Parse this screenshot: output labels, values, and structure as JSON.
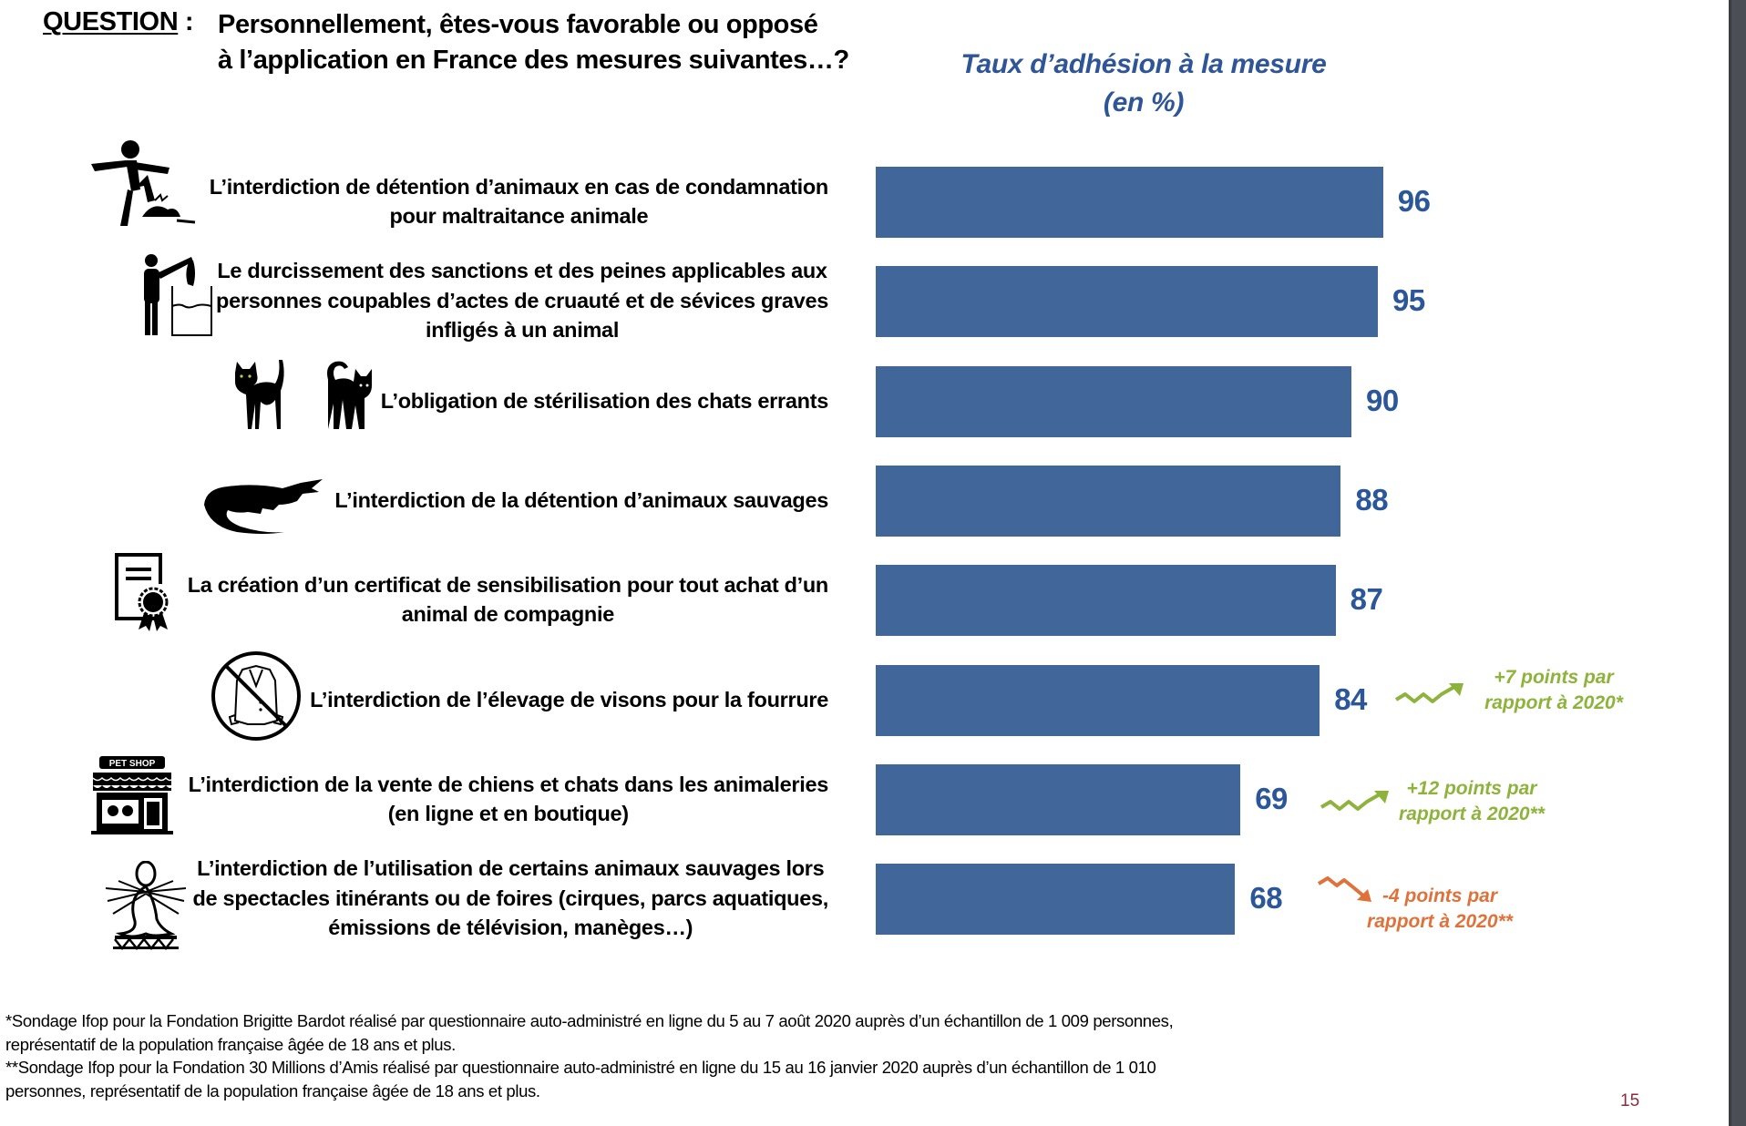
{
  "question": {
    "label": "QUESTION",
    "separator": " :",
    "text": "Personnellement, êtes-vous favorable ou opposé\nà l’application en France des mesures suivantes…?"
  },
  "colors": {
    "bar": "#41679a",
    "value_label": "#2b579a",
    "title": "#2e5597",
    "increase": "#8db33a",
    "decrease": "#e0713a",
    "page_number": "#8b2c3a"
  },
  "chart_data": {
    "type": "bar",
    "orientation": "horizontal",
    "title": "Taux d’adhésion à la mesure\n(en %)",
    "xlim": [
      0,
      100
    ],
    "grid": false,
    "categories": [
      "L’interdiction de détention d’animaux en cas de condamnation\npour maltraitance animale",
      "Le durcissement des sanctions et des peines applicables aux\npersonnes coupables d’actes de cruauté et de sévices graves\ninfligés à un animal",
      "L’obligation de stérilisation des chats errants",
      "L’interdiction de la détention d’animaux sauvages",
      "La création d’un certificat de sensibilisation pour tout achat d’un\nanimal de compagnie",
      "L’interdiction de l’élevage de visons pour la fourrure",
      "L’interdiction de la vente de chiens et chats dans les animaleries\n(en ligne et en boutique)",
      "L’interdiction de l’utilisation de certains animaux sauvages lors\nde spectacles itinérants ou de foires (cirques, parcs aquatiques,\némissions de télévision, manèges…)"
    ],
    "values": [
      96,
      95,
      90,
      88,
      87,
      84,
      69,
      68
    ],
    "value_labels": [
      "96",
      "95",
      "90",
      "88",
      "87",
      "84",
      "69",
      "68"
    ],
    "icons": [
      "person-kicking-animal-icon",
      "person-drowning-animal-icon",
      "cats-icon",
      "crocodile-icon",
      "certificate-icon",
      "no-fur-coat-icon",
      "pet-shop-icon",
      "circus-seal-icon"
    ],
    "annotations": [
      {
        "row": 5,
        "direction": "up",
        "change": 7,
        "text": "+7 points par\nrapport à 2020*"
      },
      {
        "row": 6,
        "direction": "up",
        "change": 12,
        "text": "+12 points par\nrapport à 2020**"
      },
      {
        "row": 7,
        "direction": "down",
        "change": -4,
        "text": "-4 points par\nrapport à 2020**"
      }
    ]
  },
  "pet_shop_sign": "PET SHOP",
  "footnotes": [
    "*Sondage Ifop pour la Fondation Brigitte Bardot réalisé par questionnaire auto-administré en ligne du 5 au 7 août 2020 auprès d’un échantillon de 1 009 personnes,",
    "représentatif de la population française âgée de 18 ans et plus.",
    "**Sondage Ifop pour la Fondation 30 Millions d’Amis réalisé par questionnaire auto-administré en ligne du 15 au 16 janvier 2020 auprès d’un échantillon de 1 010",
    "personnes, représentatif de la population française âgée de 18 ans et plus."
  ],
  "page_number": "15"
}
